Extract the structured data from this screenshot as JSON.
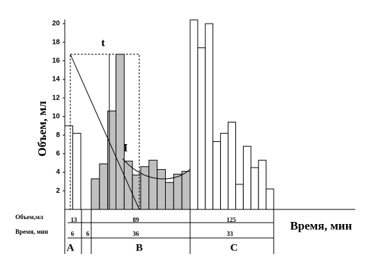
{
  "chart_data": {
    "type": "bar",
    "y_label": "Объем, мл",
    "x_label": "Время, мин",
    "ylim": [
      0,
      20
    ],
    "yticks": [
      2,
      4,
      6,
      8,
      10,
      12,
      14,
      16,
      18,
      20
    ],
    "series": [
      {
        "color": "#ffffff",
        "values": [
          9,
          8.2
        ]
      },
      {
        "color": "#c0c0c0",
        "values": [
          3.3,
          4.9,
          10.6,
          16.7,
          5.2,
          3.7,
          4.6,
          5.3,
          4.3,
          2.9,
          3.8,
          4.1
        ]
      },
      {
        "color": "#ffffff",
        "values": [
          20.4,
          17.4,
          20,
          7.3,
          8.2,
          9.4,
          2.7,
          6.8,
          4.5,
          5.3,
          2.2
        ]
      }
    ],
    "sections": [
      "A",
      "B",
      "C"
    ],
    "annotations": [
      "t",
      "П"
    ],
    "table": {
      "volume": {
        "label": "Объем,мл",
        "values": [
          13,
          89,
          125
        ]
      },
      "time": {
        "label": "Время, мин",
        "values": [
          6,
          6,
          36,
          33
        ]
      }
    }
  }
}
